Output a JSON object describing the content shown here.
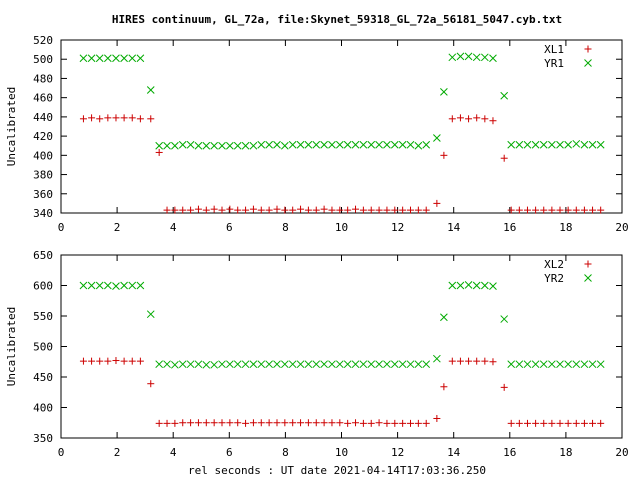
{
  "title": "HIRES continuum, GL_72a, file:Skynet_59318_GL_72a_56181_5047.cyb.txt",
  "xlabel": "rel seconds : UT date 2021-04-14T17:03:36.250",
  "colors": {
    "red": "#cc0000",
    "green": "#00aa00",
    "axis": "#000000"
  },
  "chart_data": [
    {
      "type": "scatter",
      "ylabel": "Uncalibrated",
      "xlim": [
        0,
        20
      ],
      "ylim": [
        340,
        520
      ],
      "xticks": [
        0,
        2,
        4,
        6,
        8,
        10,
        12,
        14,
        16,
        18,
        20
      ],
      "yticks": [
        340,
        360,
        380,
        400,
        420,
        440,
        460,
        480,
        500,
        520
      ],
      "legend_position": "top-right",
      "series": [
        {
          "name": "XL1",
          "marker": "plus",
          "color": "#cc0000",
          "x": [
            0.8,
            1.09,
            1.38,
            1.67,
            1.96,
            2.25,
            2.54,
            2.83,
            3.2,
            3.5,
            3.78,
            4.06,
            4.34,
            4.62,
            4.9,
            5.18,
            5.46,
            5.74,
            6.02,
            6.3,
            6.58,
            6.86,
            7.14,
            7.42,
            7.7,
            7.98,
            8.26,
            8.54,
            8.82,
            9.1,
            9.38,
            9.66,
            9.94,
            10.22,
            10.5,
            10.78,
            11.06,
            11.34,
            11.62,
            11.9,
            12.18,
            12.46,
            12.74,
            13.02,
            13.4,
            13.65,
            13.95,
            14.24,
            14.53,
            14.82,
            15.11,
            15.4,
            15.8,
            16.05,
            16.34,
            16.63,
            16.92,
            17.21,
            17.5,
            17.79,
            18.08,
            18.37,
            18.66,
            18.95,
            19.24
          ],
          "y": [
            438,
            439,
            438,
            439,
            439,
            439,
            439,
            438,
            438,
            403,
            343,
            343,
            343,
            343,
            344,
            343,
            344,
            343,
            344,
            343,
            343,
            344,
            343,
            343,
            344,
            343,
            343,
            344,
            343,
            343,
            344,
            343,
            343,
            343,
            344,
            343,
            343,
            343,
            343,
            343,
            343,
            343,
            343,
            343,
            350,
            400,
            438,
            439,
            438,
            439,
            438,
            436,
            397,
            343,
            343,
            343,
            343,
            343,
            343,
            343,
            343,
            343,
            343,
            343,
            343
          ]
        },
        {
          "name": "YR1",
          "marker": "cross",
          "color": "#00aa00",
          "x": [
            0.8,
            1.09,
            1.38,
            1.67,
            1.96,
            2.25,
            2.54,
            2.83,
            3.2,
            3.5,
            3.78,
            4.06,
            4.34,
            4.62,
            4.9,
            5.18,
            5.46,
            5.74,
            6.02,
            6.3,
            6.58,
            6.86,
            7.14,
            7.42,
            7.7,
            7.98,
            8.26,
            8.54,
            8.82,
            9.1,
            9.38,
            9.66,
            9.94,
            10.22,
            10.5,
            10.78,
            11.06,
            11.34,
            11.62,
            11.9,
            12.18,
            12.46,
            12.74,
            13.02,
            13.4,
            13.65,
            13.95,
            14.24,
            14.53,
            14.82,
            15.11,
            15.4,
            15.8,
            16.05,
            16.34,
            16.63,
            16.92,
            17.21,
            17.5,
            17.79,
            18.08,
            18.37,
            18.66,
            18.95,
            19.24
          ],
          "y": [
            501,
            501,
            501,
            501,
            501,
            501,
            501,
            501,
            468,
            410,
            410,
            410,
            411,
            411,
            410,
            410,
            410,
            410,
            410,
            410,
            410,
            410,
            411,
            411,
            411,
            410,
            411,
            411,
            411,
            411,
            411,
            411,
            411,
            411,
            411,
            411,
            411,
            411,
            411,
            411,
            411,
            411,
            410,
            411,
            418,
            466,
            502,
            503,
            503,
            502,
            502,
            501,
            462,
            411,
            411,
            411,
            411,
            411,
            411,
            411,
            411,
            412,
            411,
            411,
            411
          ]
        }
      ]
    },
    {
      "type": "scatter",
      "ylabel": "Uncalibrated",
      "xlim": [
        0,
        20
      ],
      "ylim": [
        350,
        650
      ],
      "xticks": [
        0,
        2,
        4,
        6,
        8,
        10,
        12,
        14,
        16,
        18,
        20
      ],
      "yticks": [
        350,
        400,
        450,
        500,
        550,
        600,
        650
      ],
      "legend_position": "top-right",
      "series": [
        {
          "name": "XL2",
          "marker": "plus",
          "color": "#cc0000",
          "x": [
            0.8,
            1.09,
            1.38,
            1.67,
            1.96,
            2.25,
            2.54,
            2.83,
            3.2,
            3.5,
            3.78,
            4.06,
            4.34,
            4.62,
            4.9,
            5.18,
            5.46,
            5.74,
            6.02,
            6.3,
            6.58,
            6.86,
            7.14,
            7.42,
            7.7,
            7.98,
            8.26,
            8.54,
            8.82,
            9.1,
            9.38,
            9.66,
            9.94,
            10.22,
            10.5,
            10.78,
            11.06,
            11.34,
            11.62,
            11.9,
            12.18,
            12.46,
            12.74,
            13.02,
            13.4,
            13.65,
            13.95,
            14.24,
            14.53,
            14.82,
            15.11,
            15.4,
            15.8,
            16.05,
            16.34,
            16.63,
            16.92,
            17.21,
            17.5,
            17.79,
            18.08,
            18.37,
            18.66,
            18.95,
            19.24
          ],
          "y": [
            476,
            476,
            476,
            476,
            477,
            476,
            476,
            476,
            439,
            374,
            374,
            374,
            375,
            375,
            375,
            375,
            375,
            375,
            375,
            375,
            374,
            375,
            375,
            375,
            375,
            375,
            375,
            375,
            375,
            375,
            375,
            375,
            375,
            374,
            375,
            374,
            374,
            375,
            374,
            374,
            374,
            374,
            374,
            374,
            382,
            434,
            476,
            476,
            476,
            476,
            476,
            475,
            433,
            374,
            374,
            374,
            374,
            374,
            374,
            374,
            374,
            374,
            374,
            374,
            374
          ]
        },
        {
          "name": "YR2",
          "marker": "cross",
          "color": "#00aa00",
          "x": [
            0.8,
            1.09,
            1.38,
            1.67,
            1.96,
            2.25,
            2.54,
            2.83,
            3.2,
            3.5,
            3.78,
            4.06,
            4.34,
            4.62,
            4.9,
            5.18,
            5.46,
            5.74,
            6.02,
            6.3,
            6.58,
            6.86,
            7.14,
            7.42,
            7.7,
            7.98,
            8.26,
            8.54,
            8.82,
            9.1,
            9.38,
            9.66,
            9.94,
            10.22,
            10.5,
            10.78,
            11.06,
            11.34,
            11.62,
            11.9,
            12.18,
            12.46,
            12.74,
            13.02,
            13.4,
            13.65,
            13.95,
            14.24,
            14.53,
            14.82,
            15.11,
            15.4,
            15.8,
            16.05,
            16.34,
            16.63,
            16.92,
            17.21,
            17.5,
            17.79,
            18.08,
            18.37,
            18.66,
            18.95,
            19.24
          ],
          "y": [
            600,
            600,
            600,
            600,
            599,
            600,
            600,
            600,
            553,
            471,
            471,
            470,
            471,
            471,
            471,
            470,
            470,
            471,
            471,
            471,
            471,
            471,
            471,
            471,
            471,
            471,
            471,
            471,
            471,
            471,
            471,
            471,
            471,
            471,
            471,
            471,
            471,
            471,
            471,
            471,
            471,
            471,
            471,
            471,
            480,
            548,
            600,
            600,
            601,
            600,
            600,
            599,
            545,
            471,
            471,
            471,
            471,
            471,
            471,
            471,
            471,
            471,
            471,
            471,
            471
          ]
        }
      ]
    }
  ]
}
